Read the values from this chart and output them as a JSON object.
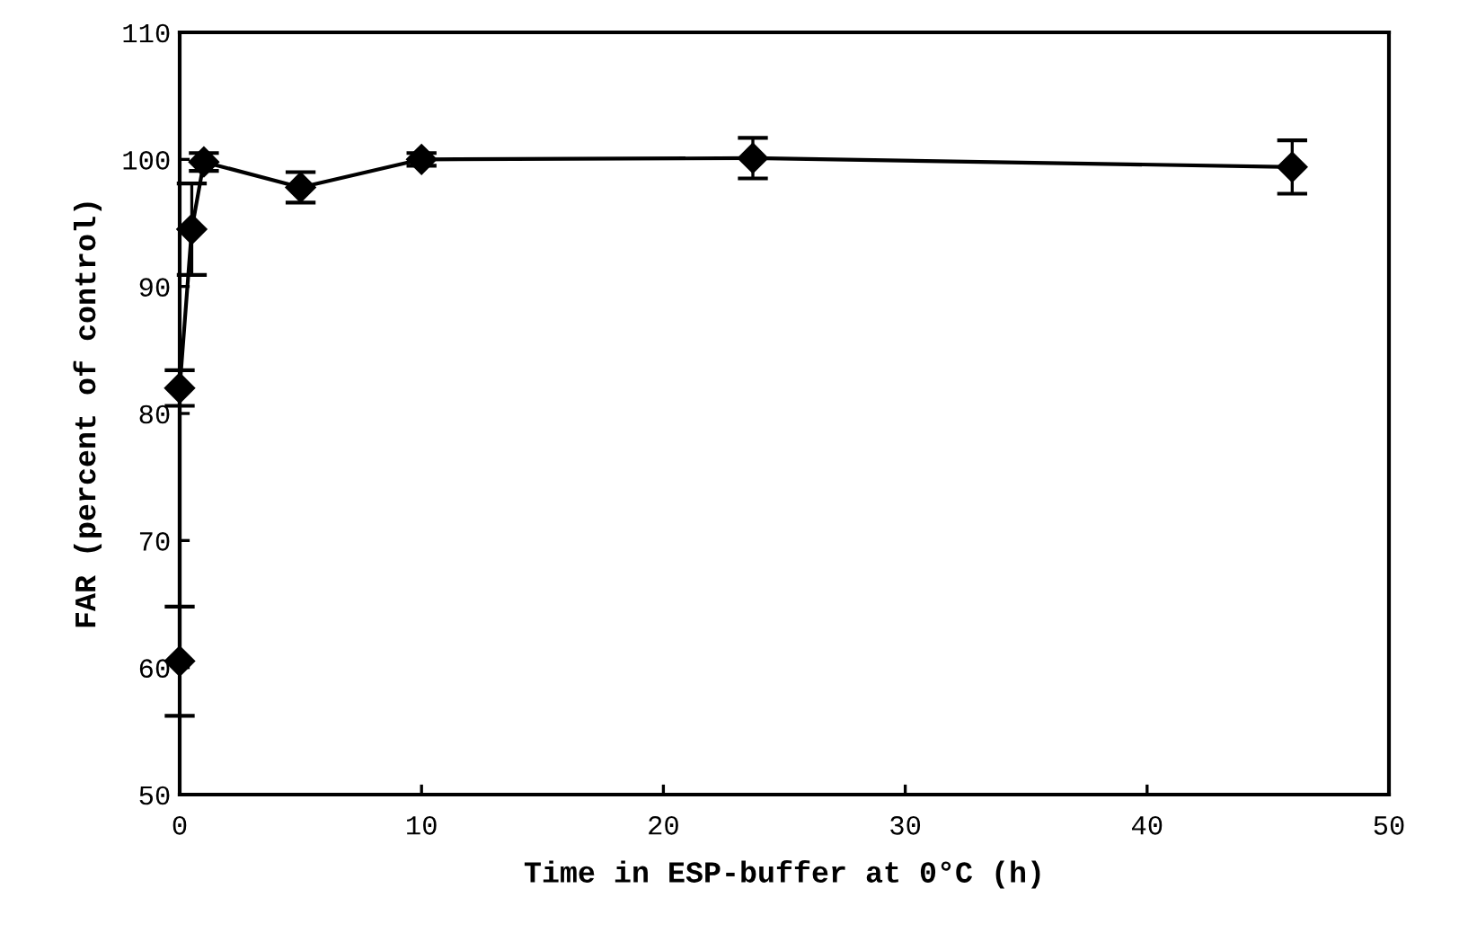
{
  "chart_data": {
    "type": "line",
    "xlabel": "Time in ESP-buffer at 0°C (h)",
    "ylabel": "FAR (percent of control)",
    "x": [
      0,
      0,
      0.5,
      1,
      5,
      10,
      23.7,
      46
    ],
    "series": [
      {
        "color": "#000000",
        "values": [
          60.5,
          82.0,
          94.5,
          99.8,
          97.8,
          100.0,
          100.1,
          99.4
        ],
        "errors": [
          4.3,
          1.4,
          3.6,
          0.7,
          1.2,
          0.5,
          1.6,
          2.1
        ]
      }
    ],
    "marker": "diamond",
    "line_style": "solid",
    "grid": false,
    "legend": false,
    "xlim": [
      0,
      50
    ],
    "xticks": [
      0,
      10,
      20,
      30,
      40,
      50
    ],
    "ylim": [
      50,
      110
    ],
    "yticks": [
      50,
      60,
      70,
      80,
      90,
      100,
      110
    ]
  }
}
